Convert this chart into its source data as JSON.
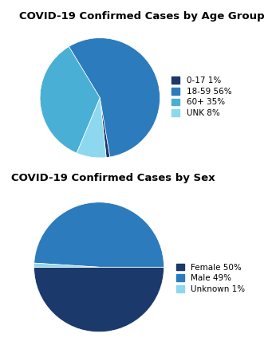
{
  "chart1_title": "COVID-19 Confirmed Cases by Age Group",
  "chart1_labels": [
    "0-17 1%",
    "18-59 56%",
    "60+ 35%",
    "UNK 8%"
  ],
  "chart1_values": [
    1,
    56,
    35,
    8
  ],
  "chart1_colors": [
    "#1b3a6b",
    "#2b7bbd",
    "#4aafd4",
    "#8dd8ee"
  ],
  "chart1_startangle": -84,
  "chart2_title": "COVID-19 Confirmed Cases by Sex",
  "chart2_labels": [
    "Female 50%",
    "Male 49%",
    "Unknown 1%"
  ],
  "chart2_values": [
    50,
    49,
    1
  ],
  "chart2_colors": [
    "#1b3a6b",
    "#2b7bbd",
    "#8dd8ee"
  ],
  "chart2_startangle": -180,
  "bg_color": "#ffffff",
  "title_fontsize": 9.5,
  "legend_fontsize": 7.5
}
